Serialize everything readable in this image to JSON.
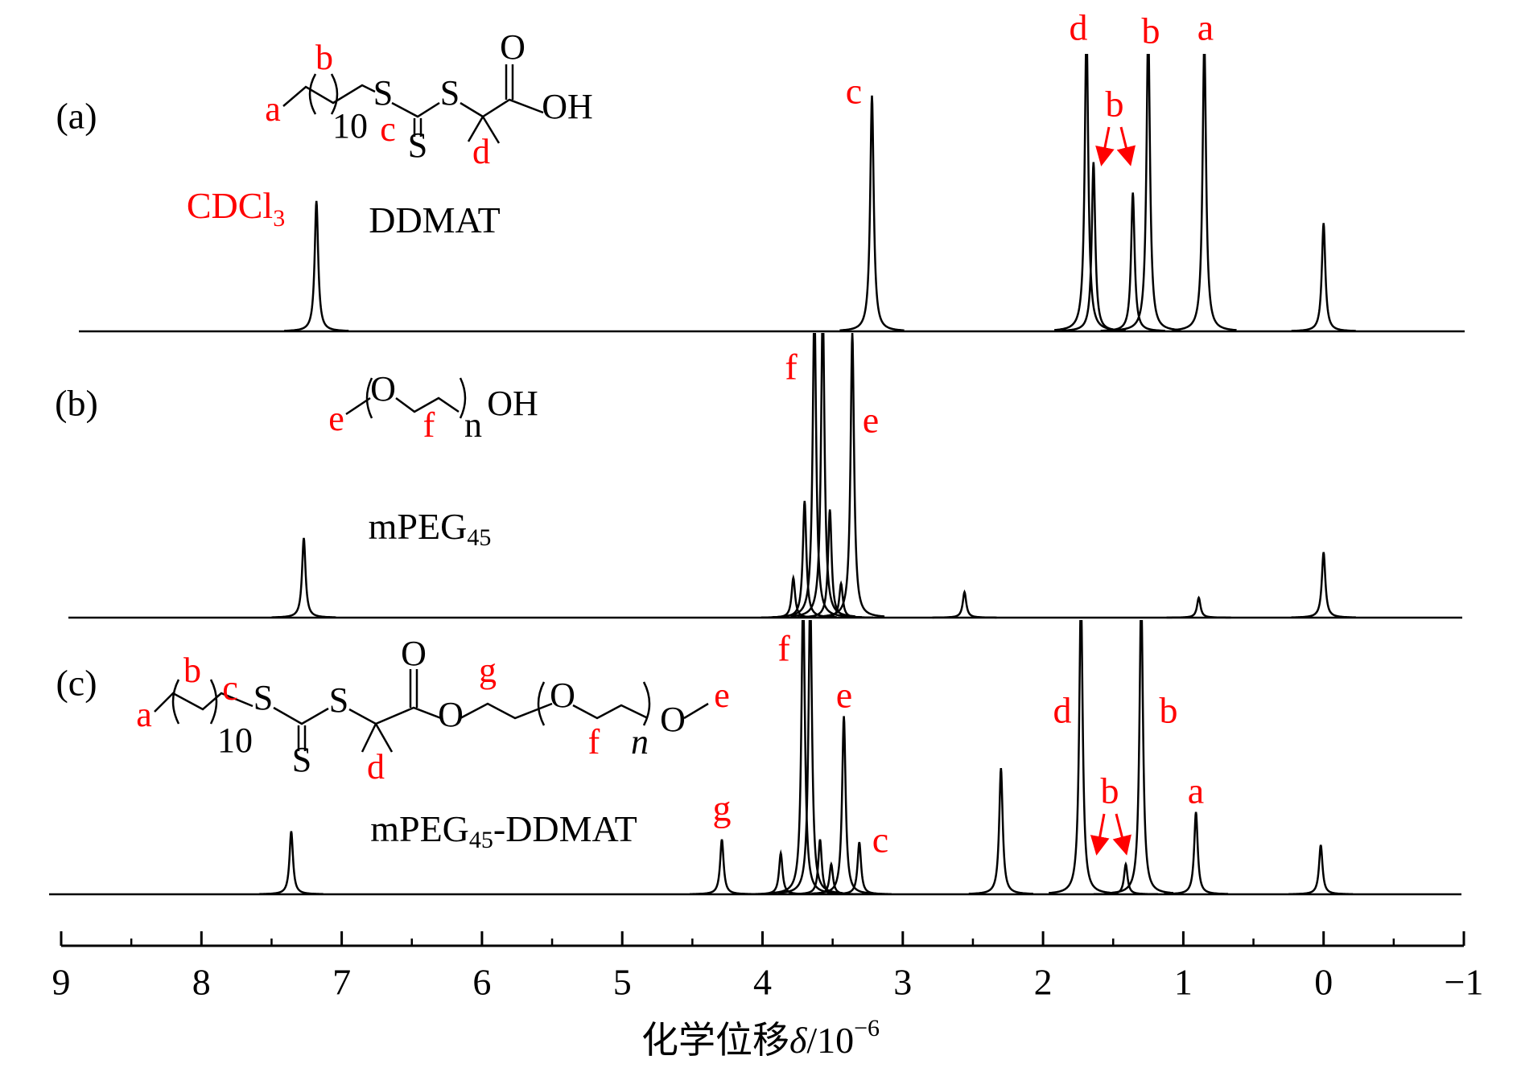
{
  "chart_data": {
    "type": "spectrum",
    "xlim": [
      9,
      -1
    ],
    "xticks": [
      9,
      8,
      7,
      6,
      5,
      4,
      3,
      2,
      1,
      0,
      {
        "value": -1,
        "label": "−1"
      }
    ],
    "minor_xticks": [
      8.5,
      7.5,
      6.5,
      5.5,
      4.5,
      3.5,
      2.5,
      1.5,
      0.5,
      -0.5
    ],
    "xlabel": [
      "化学位移",
      "δ",
      "/10",
      "−6"
    ],
    "intensity_lim": [
      0,
      100
    ],
    "color": "#000000",
    "label_color": "#ff0000",
    "panels": [
      {
        "tag": "(a)",
        "name": [
          "DDMAT"
        ],
        "solvent": [
          "CDCl",
          "3"
        ],
        "x": [
          7.18,
          3.22,
          1.69,
          1.64,
          1.36,
          1.25,
          0.85,
          0.0
        ],
        "values": [
          47,
          85,
          110,
          61,
          50,
          110,
          105,
          39
        ],
        "peak_labels": [
          null,
          "c",
          "d",
          null,
          "b",
          "b",
          "a",
          null
        ],
        "structure": [
          "a",
          "b",
          "10",
          "c",
          "S",
          "S",
          "S",
          "O",
          "OH",
          "d"
        ]
      },
      {
        "tag": "(b)",
        "name": [
          "mPEG",
          "45"
        ],
        "x": [
          7.27,
          3.78,
          3.7,
          3.63,
          3.57,
          3.52,
          3.44,
          3.36,
          2.56,
          0.89,
          0.0
        ],
        "values": [
          28,
          14,
          41,
          110,
          110,
          38,
          12,
          100,
          9,
          7,
          23
        ],
        "peak_labels": [
          null,
          null,
          null,
          "f",
          null,
          null,
          null,
          "e",
          null,
          null,
          null
        ],
        "structure": [
          "e",
          "O",
          "f",
          "n",
          "OH"
        ]
      },
      {
        "tag": "(c)",
        "name": [
          "mPEG",
          "45",
          "-DDMAT"
        ],
        "x": [
          7.36,
          4.29,
          3.87,
          3.71,
          3.66,
          3.59,
          3.51,
          3.42,
          3.31,
          2.3,
          1.73,
          1.41,
          1.3,
          0.91,
          0.02
        ],
        "values": [
          23,
          20,
          15,
          110,
          110,
          20,
          11,
          65,
          19,
          46,
          110,
          11,
          110,
          30,
          18
        ],
        "peak_labels": [
          null,
          "g",
          null,
          "f",
          null,
          null,
          null,
          "e",
          "c",
          null,
          "d",
          "b",
          "b",
          "a",
          null
        ],
        "structure": [
          "a",
          "b",
          "c",
          "10",
          "S",
          "S",
          "S",
          "O",
          "O",
          "g",
          "O",
          "f",
          "n",
          "O",
          "e",
          "d"
        ]
      }
    ]
  }
}
